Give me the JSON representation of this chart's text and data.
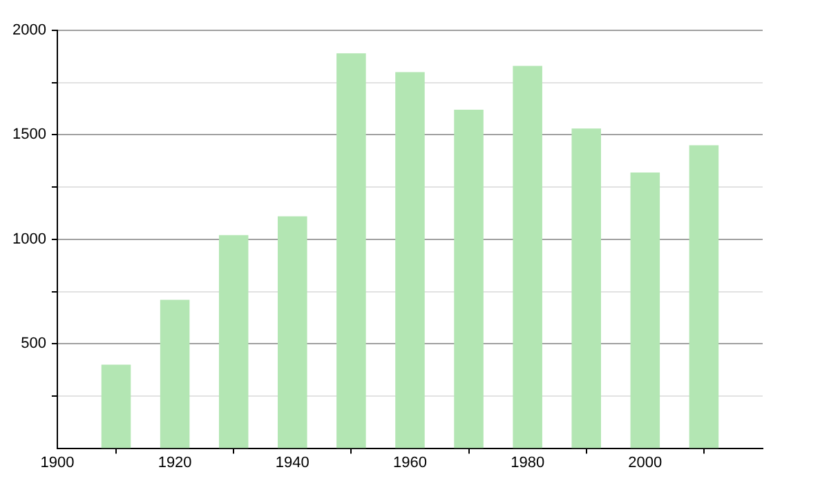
{
  "chart_data": {
    "type": "bar",
    "x": [
      1910,
      1920,
      1930,
      1940,
      1950,
      1960,
      1970,
      1980,
      1990,
      2000,
      2010
    ],
    "values": [
      400,
      710,
      1020,
      1110,
      1890,
      1800,
      1620,
      1830,
      1530,
      1320,
      1450
    ],
    "color": "#b3e6b3",
    "xlim": [
      1900,
      2020
    ],
    "xticks": [
      1900,
      1920,
      1940,
      1960,
      1980,
      2000
    ],
    "ylim": [
      0,
      2000
    ],
    "yticks": [
      {
        "value": 250,
        "label": null
      },
      500,
      {
        "value": 750,
        "label": null
      },
      1000,
      {
        "value": 1250,
        "label": null
      },
      1500,
      {
        "value": 1750,
        "label": null
      },
      2000
    ],
    "grid": "y",
    "legend": false
  }
}
